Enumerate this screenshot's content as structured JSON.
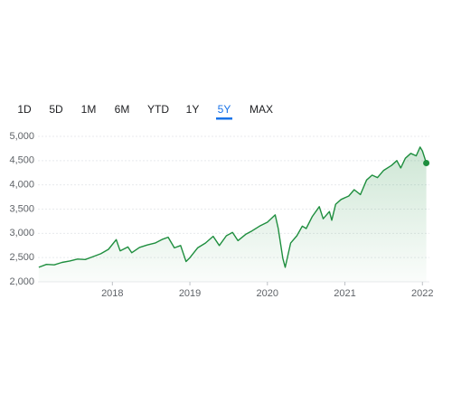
{
  "tabs": [
    "1D",
    "5D",
    "1M",
    "6M",
    "YTD",
    "1Y",
    "5Y",
    "MAX"
  ],
  "selected_tab": "5Y",
  "chart_data": {
    "type": "area",
    "color": "#1e8e3e",
    "grid": true,
    "x": [
      2017.05,
      2017.15,
      2017.25,
      2017.35,
      2017.45,
      2017.55,
      2017.65,
      2017.75,
      2017.85,
      2017.95,
      2018.05,
      2018.1,
      2018.2,
      2018.25,
      2018.35,
      2018.45,
      2018.55,
      2018.65,
      2018.72,
      2018.8,
      2018.88,
      2018.95,
      2019.0,
      2019.1,
      2019.2,
      2019.3,
      2019.38,
      2019.47,
      2019.55,
      2019.62,
      2019.72,
      2019.8,
      2019.9,
      2020.0,
      2020.1,
      2020.14,
      2020.2,
      2020.23,
      2020.3,
      2020.38,
      2020.45,
      2020.5,
      2020.58,
      2020.67,
      2020.72,
      2020.8,
      2020.83,
      2020.88,
      2020.95,
      2021.05,
      2021.12,
      2021.2,
      2021.28,
      2021.35,
      2021.42,
      2021.5,
      2021.6,
      2021.67,
      2021.72,
      2021.78,
      2021.85,
      2021.92,
      2021.97,
      2022.0,
      2022.05
    ],
    "values": [
      2300,
      2360,
      2350,
      2400,
      2430,
      2470,
      2460,
      2520,
      2580,
      2670,
      2870,
      2640,
      2720,
      2600,
      2710,
      2760,
      2800,
      2880,
      2920,
      2700,
      2750,
      2420,
      2500,
      2700,
      2800,
      2940,
      2750,
      2950,
      3020,
      2850,
      2980,
      3050,
      3150,
      3230,
      3380,
      3100,
      2480,
      2300,
      2800,
      2950,
      3150,
      3100,
      3350,
      3550,
      3300,
      3450,
      3270,
      3600,
      3700,
      3770,
      3900,
      3800,
      4100,
      4200,
      4150,
      4300,
      4400,
      4500,
      4350,
      4550,
      4650,
      4600,
      4780,
      4700,
      4450
    ],
    "xlim": [
      2017.04,
      2022.09
    ],
    "xticks": [
      2018,
      2019,
      2020,
      2021,
      2022
    ],
    "ylim": [
      2000,
      5000
    ],
    "yticks": [
      {
        "value": 2000,
        "label": "2,000"
      },
      {
        "value": 2500,
        "label": "2,500"
      },
      {
        "value": 3000,
        "label": "3,000"
      },
      {
        "value": 3500,
        "label": "3,500"
      },
      {
        "value": 4000,
        "label": "4,000"
      },
      {
        "value": 4500,
        "label": "4,500"
      },
      {
        "value": 5000,
        "label": "5,000"
      }
    ]
  }
}
